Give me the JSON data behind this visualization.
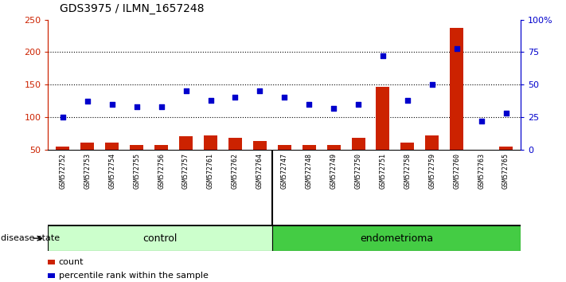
{
  "title": "GDS3975 / ILMN_1657248",
  "samples": [
    "GSM572752",
    "GSM572753",
    "GSM572754",
    "GSM572755",
    "GSM572756",
    "GSM572757",
    "GSM572761",
    "GSM572762",
    "GSM572764",
    "GSM572747",
    "GSM572748",
    "GSM572749",
    "GSM572750",
    "GSM572751",
    "GSM572758",
    "GSM572759",
    "GSM572760",
    "GSM572763",
    "GSM572765"
  ],
  "count_values": [
    55,
    60,
    60,
    57,
    57,
    70,
    72,
    68,
    63,
    57,
    57,
    57,
    68,
    147,
    60,
    72,
    238,
    50,
    55
  ],
  "percentile_values": [
    25,
    37,
    35,
    33,
    33,
    45,
    38,
    40,
    45,
    40,
    35,
    32,
    35,
    72,
    38,
    50,
    78,
    22,
    28
  ],
  "n_control": 9,
  "n_endo": 10,
  "bar_color": "#cc2200",
  "dot_color": "#0000cc",
  "ylim_left": [
    50,
    250
  ],
  "ylim_right": [
    0,
    100
  ],
  "yticks_left": [
    50,
    100,
    150,
    200,
    250
  ],
  "yticks_right": [
    0,
    25,
    50,
    75,
    100
  ],
  "ytick_labels_right": [
    "0",
    "25",
    "50",
    "75",
    "100%"
  ],
  "hlines": [
    100,
    150,
    200
  ],
  "sample_bg_color": "#c8c8c8",
  "sample_sep_color": "#aaaaaa",
  "control_color": "#ccffcc",
  "endometrioma_color": "#44cc44",
  "legend_count_label": "count",
  "legend_percentile_label": "percentile rank within the sample",
  "disease_state_label": "disease state",
  "control_label": "control",
  "endometrioma_label": "endometrioma"
}
